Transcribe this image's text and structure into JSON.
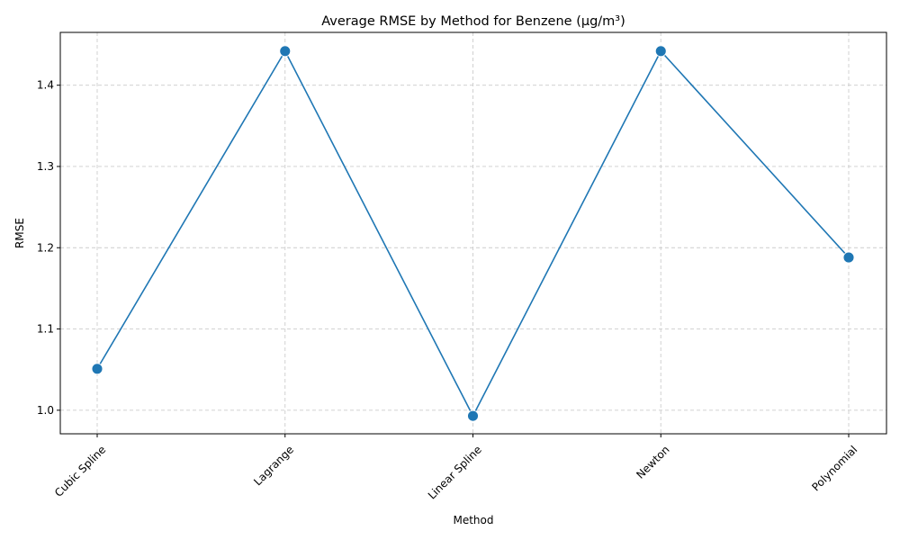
{
  "chart_data": {
    "type": "line",
    "title": "Average RMSE by Method for Benzene (µg/m³)",
    "xlabel": "Method",
    "ylabel": "RMSE",
    "categories": [
      "Cubic Spline",
      "Lagrange",
      "Linear Spline",
      "Newton",
      "Polynomial"
    ],
    "series": [
      {
        "values": [
          1.051,
          1.442,
          0.993,
          1.442,
          1.188
        ]
      }
    ],
    "ylim": [
      0.971,
      1.465
    ],
    "yticks": [
      1.0,
      1.1,
      1.2,
      1.3,
      1.4
    ],
    "ytick_labels": [
      "1.0",
      "1.1",
      "1.2",
      "1.3",
      "1.4"
    ],
    "grid": true,
    "legend": "none",
    "line_color": "#1f77b4",
    "x_tick_rotation_deg": 45
  }
}
